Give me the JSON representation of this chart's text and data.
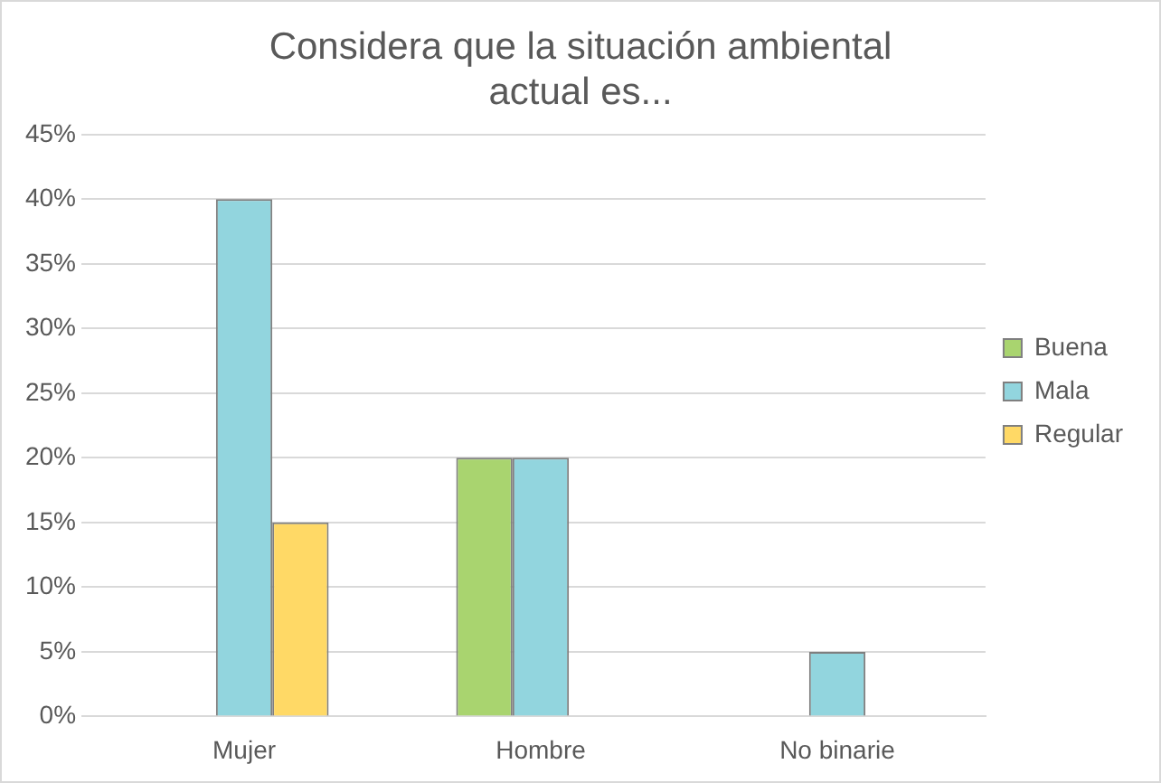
{
  "chart_data": {
    "type": "bar",
    "title": "Considera que la situación ambiental actual es...",
    "categories": [
      "Mujer",
      "Hombre",
      "No binarie"
    ],
    "series": [
      {
        "name": "Buena",
        "color": "#a9d46f",
        "values": [
          0,
          20,
          0
        ]
      },
      {
        "name": "Mala",
        "color": "#92d5de",
        "values": [
          40,
          20,
          5
        ]
      },
      {
        "name": "Regular",
        "color": "#ffd966",
        "values": [
          15,
          0,
          0
        ]
      }
    ],
    "ylim": [
      0,
      45
    ],
    "yticks": [
      {
        "value": 0,
        "label": "0%"
      },
      {
        "value": 5,
        "label": "5%"
      },
      {
        "value": 10,
        "label": "10%"
      },
      {
        "value": 15,
        "label": "15%"
      },
      {
        "value": 20,
        "label": "20%"
      },
      {
        "value": 25,
        "label": "25%"
      },
      {
        "value": 30,
        "label": "30%"
      },
      {
        "value": 35,
        "label": "35%"
      },
      {
        "value": 40,
        "label": "40%"
      },
      {
        "value": 45,
        "label": "45%"
      }
    ],
    "grid": "y",
    "legend": "right"
  }
}
